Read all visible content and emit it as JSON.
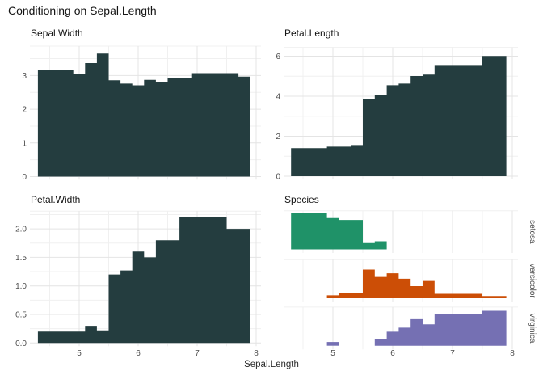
{
  "title": "Conditioning on Sepal.Length",
  "colors": {
    "histogram": "#243d3f",
    "setosa": "#1f9268",
    "versicolor": "#cc4e06",
    "virginica": "#7570b3",
    "grid_major": "#e4e4e4",
    "grid_minor": "#f0f0f0",
    "axis_text": "#4d4d4d",
    "strip_text": "#4d4d4d",
    "title_text": "#141414"
  },
  "x_axis": {
    "label": "Sepal.Length",
    "ticks": [
      {
        "v": 5,
        "label": "5"
      },
      {
        "v": 6,
        "label": "6"
      },
      {
        "v": 7,
        "label": "7"
      },
      {
        "v": 8,
        "label": "8"
      }
    ],
    "grid_major": [
      5,
      6,
      7,
      8
    ],
    "grid_minor": [
      4.5,
      5.5,
      6.5,
      7.5
    ],
    "xlim": [
      4.12,
      8.08
    ]
  },
  "chart_data": [
    {
      "type": "bar",
      "title": "Sepal.Width",
      "bin_start": 4.3,
      "bin_width": 0.2,
      "values": [
        3.17,
        3.17,
        3.17,
        3.05,
        3.37,
        3.65,
        2.86,
        2.76,
        2.71,
        2.87,
        2.8,
        2.92,
        2.92,
        3.07,
        3.07,
        3.07,
        3.07,
        2.97
      ],
      "y_ticks": [
        {
          "v": 0,
          "label": "0"
        },
        {
          "v": 1,
          "label": "1"
        },
        {
          "v": 2,
          "label": "2"
        },
        {
          "v": 3,
          "label": "3"
        }
      ],
      "y_minor": [
        0.5,
        1.5,
        2.5,
        3.5
      ],
      "ylim": [
        0,
        3.87
      ]
    },
    {
      "type": "bar",
      "title": "Petal.Length",
      "bin_start": 4.3,
      "bin_width": 0.2,
      "values": [
        1.4,
        1.4,
        1.4,
        1.48,
        1.48,
        1.56,
        3.85,
        4.05,
        4.55,
        4.63,
        5.01,
        5.08,
        5.52,
        5.52,
        5.52,
        5.52,
        6.01,
        6.01
      ],
      "y_ticks": [
        {
          "v": 0,
          "label": "0"
        },
        {
          "v": 2,
          "label": "2"
        },
        {
          "v": 4,
          "label": "4"
        },
        {
          "v": 6,
          "label": "6"
        }
      ],
      "y_minor": [
        1,
        3,
        5
      ],
      "ylim": [
        0,
        6.42
      ]
    },
    {
      "type": "bar",
      "title": "Petal.Width",
      "bin_start": 4.3,
      "bin_width": 0.2,
      "values": [
        0.2,
        0.2,
        0.2,
        0.2,
        0.3,
        0.22,
        1.2,
        1.27,
        1.6,
        1.5,
        1.8,
        1.8,
        2.2,
        2.2,
        2.2,
        2.2,
        2.0,
        2.0
      ],
      "y_ticks": [
        {
          "v": 0,
          "label": "0.0"
        },
        {
          "v": 0.5,
          "label": "0.5"
        },
        {
          "v": 1,
          "label": "1.0"
        },
        {
          "v": 1.5,
          "label": "1.5"
        },
        {
          "v": 2,
          "label": "2.0"
        }
      ],
      "y_minor": [
        0.25,
        0.75,
        1.25,
        1.75,
        2.25
      ],
      "ylim": [
        0,
        2.31
      ]
    },
    {
      "type": "bar-faceted",
      "title": "Species",
      "bin_start": 4.3,
      "bin_width": 0.2,
      "ylim": [
        0,
        1.05
      ],
      "facets": [
        {
          "label": "setosa",
          "color_key": "setosa",
          "values": [
            1.0,
            1.0,
            1.0,
            0.85,
            0.8,
            0.8,
            0.17,
            0.22,
            0,
            0,
            0,
            0,
            0,
            0,
            0,
            0,
            0,
            0
          ]
        },
        {
          "label": "versicolor",
          "color_key": "versicolor",
          "values": [
            0,
            0,
            0,
            0.08,
            0.15,
            0.14,
            0.78,
            0.58,
            0.68,
            0.53,
            0.33,
            0.47,
            0.12,
            0.12,
            0.12,
            0.12,
            0.06,
            0.06
          ]
        },
        {
          "label": "virginica",
          "color_key": "virginica",
          "values": [
            0,
            0,
            0,
            0.1,
            0,
            0,
            0,
            0.19,
            0.38,
            0.49,
            0.72,
            0.58,
            0.87,
            0.87,
            0.87,
            0.87,
            0.95,
            0.95
          ]
        }
      ]
    }
  ]
}
